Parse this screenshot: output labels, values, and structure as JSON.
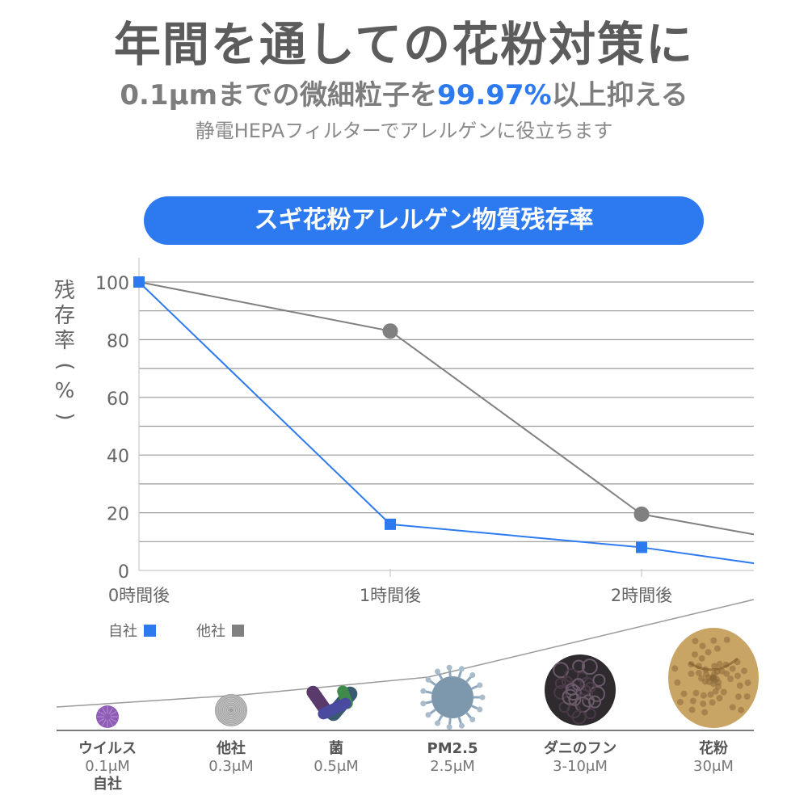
{
  "headline": "年間を通しての花粉対策に",
  "subhead_prefix": "0.1µmまでの微細粒子を",
  "subhead_accent": "99.97%",
  "subhead_suffix": "以上抑える",
  "tagline": "静電HEPAフィルターでアレルゲンに役立ちます",
  "banner": "スギ花粉アレルゲン物質残存率",
  "colors": {
    "accent": "#2d7af0",
    "gray": "#808080"
  },
  "chart_data": {
    "type": "line",
    "title": "スギ花粉アレルゲン物質残存率",
    "ylabel": "残存率(%)",
    "xlabel": "",
    "categories": [
      "0時間後",
      "1時間後",
      "2時間後"
    ],
    "ylim": [
      0,
      100
    ],
    "yticks": [
      "100",
      "80",
      "60",
      "40",
      "20",
      "0"
    ],
    "series": [
      {
        "name": "自社",
        "marker": "square",
        "color": "#2d7af0",
        "values": [
          100,
          16,
          8
        ]
      },
      {
        "name": "他社",
        "marker": "circle",
        "color": "#808080",
        "values": [
          100,
          83,
          19.5
        ]
      }
    ],
    "grid": true,
    "legend": "bottom-left"
  },
  "particles": [
    {
      "name": "ウイルス",
      "size": "0.1μM",
      "brand": "自社",
      "icon": "virus-icon",
      "color": "#8e5bb5"
    },
    {
      "name": "他社",
      "size": "0.3μM",
      "brand": "",
      "icon": "dust-ball-icon",
      "color": "#9b9b9b"
    },
    {
      "name": "菌",
      "size": "0.5μM",
      "brand": "",
      "icon": "bacteria-icon",
      "color": "#4a4a6a"
    },
    {
      "name": "PM2.5",
      "size": "2.5μM",
      "brand": "",
      "icon": "pm25-icon",
      "color": "#7d97ad"
    },
    {
      "name": "ダニのフン",
      "size": "3-10μM",
      "brand": "",
      "icon": "mite-feces-icon",
      "color": "#2e2a2e"
    },
    {
      "name": "花粉",
      "size": "30μM",
      "brand": "",
      "icon": "pollen-icon",
      "color": "#c9a565"
    }
  ]
}
